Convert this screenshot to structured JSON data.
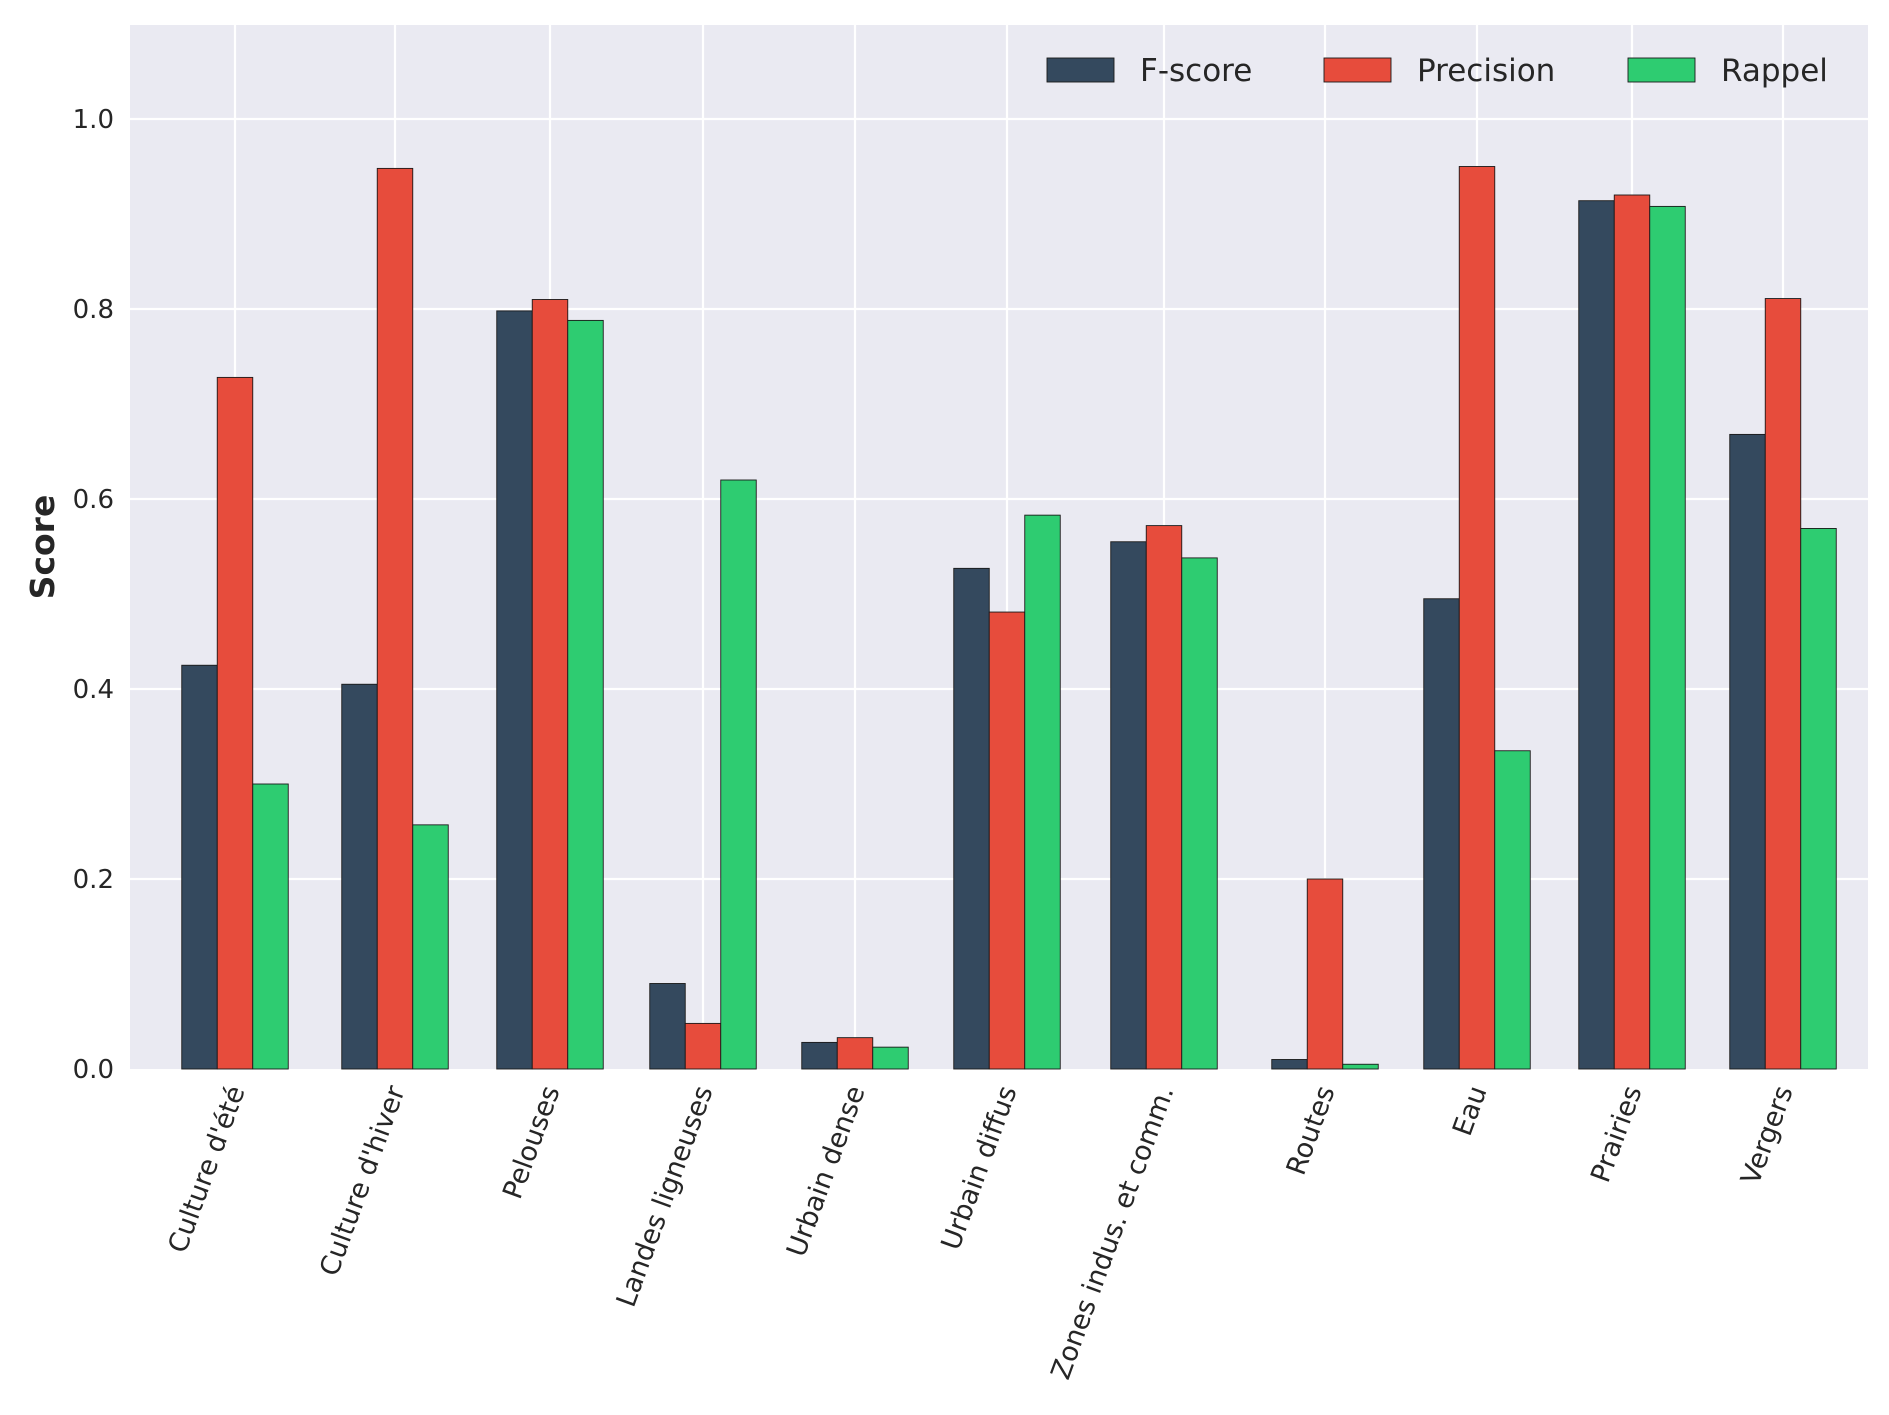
{
  "chart_data": {
    "type": "bar",
    "title": "",
    "xlabel": "",
    "ylabel": "Score",
    "ylim": [
      0,
      1.1
    ],
    "yticks": [
      0.0,
      0.2,
      0.4,
      0.6,
      0.8,
      1.0
    ],
    "ytick_labels": [
      "0.0",
      "0.2",
      "0.4",
      "0.6",
      "0.8",
      "1.0"
    ],
    "grid": true,
    "legend_position": "top-right",
    "categories": [
      "Culture d'été",
      "Culture d'hiver",
      "Pelouses",
      "Landes ligneuses",
      "Urbain dense",
      "Urbain diffus",
      "Zones indus. et comm.",
      "Routes",
      "Eau",
      "Prairies",
      "Vergers"
    ],
    "series": [
      {
        "name": "F-score",
        "color": "#34495e",
        "values": [
          0.425,
          0.405,
          0.798,
          0.09,
          0.028,
          0.527,
          0.555,
          0.01,
          0.495,
          0.914,
          0.668
        ]
      },
      {
        "name": "Precision",
        "color": "#e74c3c",
        "values": [
          0.728,
          0.948,
          0.81,
          0.048,
          0.033,
          0.481,
          0.572,
          0.2,
          0.95,
          0.92,
          0.811
        ]
      },
      {
        "name": "Rappel",
        "color": "#2ecc71",
        "values": [
          0.3,
          0.257,
          0.788,
          0.62,
          0.023,
          0.583,
          0.538,
          0.005,
          0.335,
          0.908,
          0.569
        ]
      }
    ],
    "colors": {
      "background": "#eaeaf2",
      "grid": "#ffffff",
      "bar_edge": "#1a1a1a"
    }
  }
}
